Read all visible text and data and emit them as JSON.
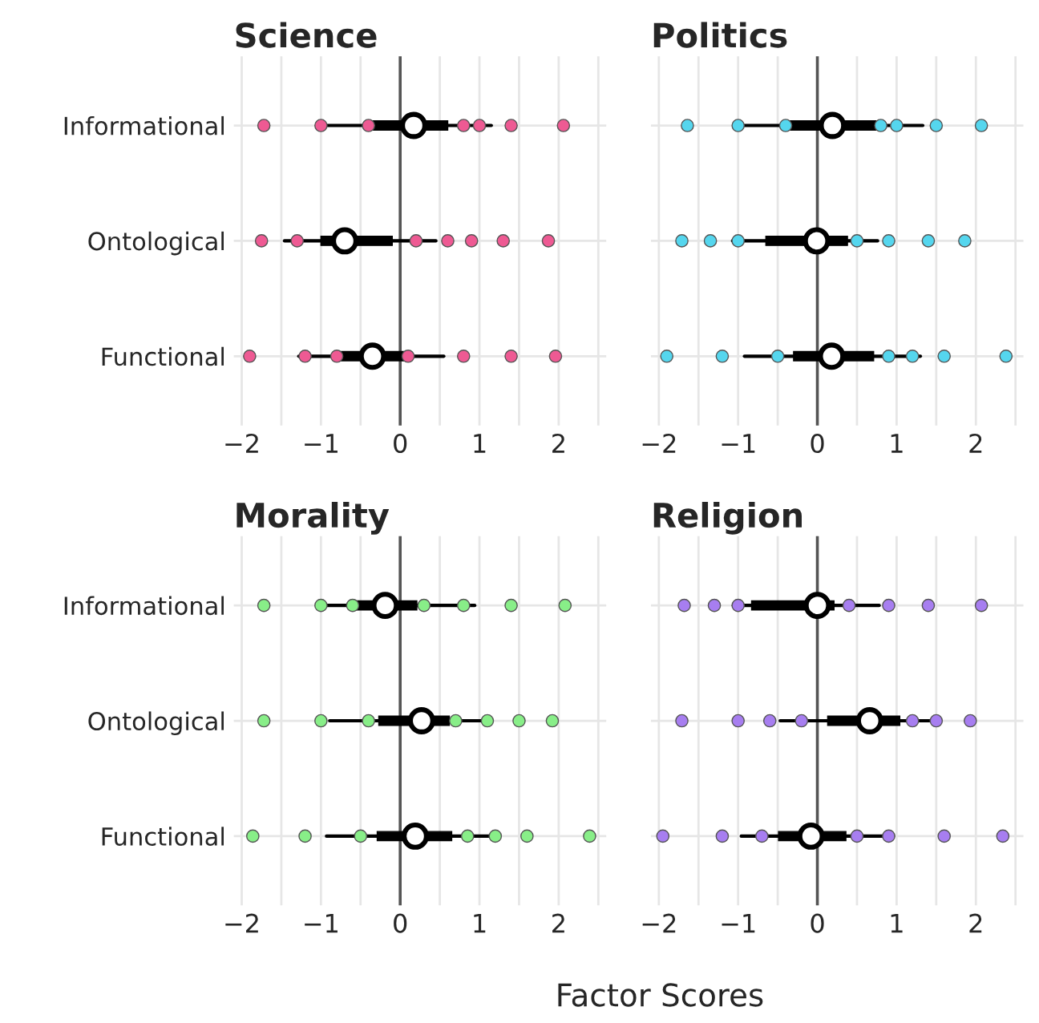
{
  "chart_data": [
    {
      "type": "box",
      "orientation": "horizontal",
      "title": "Science",
      "categories": [
        "Informational",
        "Ontological",
        "Functional"
      ],
      "boxes": [
        {
          "low": -1.0,
          "q1": -0.37,
          "median": 0.17,
          "q3": 0.6,
          "high": 1.15
        },
        {
          "low": -1.46,
          "q1": -1.0,
          "median": -0.7,
          "q3": -0.1,
          "high": 0.45
        },
        {
          "low": -1.28,
          "q1": -0.82,
          "median": -0.35,
          "q3": 0.1,
          "high": 0.55
        }
      ],
      "series": [
        {
          "type": "scatter",
          "color": "#ee5a93",
          "x": [
            "Informational",
            "Informational",
            "Informational",
            "Informational",
            "Informational",
            "Informational",
            "Informational",
            "Ontological",
            "Ontological",
            "Ontological",
            "Ontological",
            "Ontological",
            "Ontological",
            "Ontological",
            "Functional",
            "Functional",
            "Functional",
            "Functional",
            "Functional",
            "Functional",
            "Functional"
          ],
          "values": [
            -1.72,
            -1.0,
            -0.4,
            0.8,
            1.0,
            1.4,
            2.06,
            -1.75,
            -1.3,
            0.2,
            0.6,
            0.9,
            1.3,
            1.87,
            -1.9,
            -1.2,
            -0.8,
            0.1,
            0.8,
            1.4,
            1.96
          ]
        }
      ],
      "xlim": [
        -2.1,
        2.6
      ],
      "xticks": [
        -2,
        {
          "value": -1.5,
          "label": null
        },
        -1,
        {
          "value": -0.5,
          "label": null
        },
        0,
        {
          "value": 0.5,
          "label": null
        },
        1,
        {
          "value": 1.5,
          "label": null
        },
        2,
        {
          "value": 2.5,
          "label": null
        }
      ],
      "ref_lines": [
        {
          "axis": "x",
          "value": 0,
          "label": null,
          "color": "#555555"
        }
      ],
      "grid": true,
      "tick_labels": "xy"
    },
    {
      "type": "box",
      "orientation": "horizontal",
      "title": "Politics",
      "categories": [
        "Informational",
        "Ontological",
        "Functional"
      ],
      "boxes": [
        {
          "low": -0.96,
          "q1": -0.37,
          "median": 0.19,
          "q3": 0.74,
          "high": 1.33
        },
        {
          "low": -1.07,
          "q1": -0.65,
          "median": -0.01,
          "q3": 0.38,
          "high": 0.76
        },
        {
          "low": -0.92,
          "q1": -0.3,
          "median": 0.18,
          "q3": 0.71,
          "high": 1.3
        }
      ],
      "series": [
        {
          "type": "scatter",
          "color": "#55d6ee",
          "x": [
            "Informational",
            "Informational",
            "Informational",
            "Informational",
            "Informational",
            "Informational",
            "Informational",
            "Ontological",
            "Ontological",
            "Ontological",
            "Ontological",
            "Ontological",
            "Ontological",
            "Ontological",
            "Functional",
            "Functional",
            "Functional",
            "Functional",
            "Functional",
            "Functional",
            "Functional"
          ],
          "values": [
            -1.64,
            -1.0,
            -0.4,
            0.8,
            1.0,
            1.5,
            2.07,
            -1.71,
            -1.35,
            -1.0,
            0.5,
            0.9,
            1.4,
            1.86,
            -1.9,
            -1.2,
            -0.5,
            0.9,
            1.2,
            1.6,
            2.38
          ]
        }
      ],
      "xlim": [
        -2.1,
        2.6
      ],
      "xticks": [
        -2,
        {
          "value": -1.5,
          "label": null
        },
        -1,
        {
          "value": -0.5,
          "label": null
        },
        0,
        {
          "value": 0.5,
          "label": null
        },
        1,
        {
          "value": 1.5,
          "label": null
        },
        2,
        {
          "value": 2.5,
          "label": null
        }
      ],
      "ref_lines": [
        {
          "axis": "x",
          "value": 0,
          "label": null,
          "color": "#555555"
        }
      ],
      "grid": true,
      "tick_labels": "x"
    },
    {
      "type": "box",
      "orientation": "horizontal",
      "title": "Morality",
      "categories": [
        "Informational",
        "Ontological",
        "Functional"
      ],
      "boxes": [
        {
          "low": -1.0,
          "q1": -0.63,
          "median": -0.19,
          "q3": 0.21,
          "high": 0.94
        },
        {
          "low": -0.89,
          "q1": -0.27,
          "median": 0.27,
          "q3": 0.62,
          "high": 1.11
        },
        {
          "low": -0.93,
          "q1": -0.29,
          "median": 0.19,
          "q3": 0.65,
          "high": 1.22
        }
      ],
      "series": [
        {
          "type": "scatter",
          "color": "#88ee88",
          "x": [
            "Informational",
            "Informational",
            "Informational",
            "Informational",
            "Informational",
            "Informational",
            "Informational",
            "Ontological",
            "Ontological",
            "Ontological",
            "Ontological",
            "Ontological",
            "Ontological",
            "Ontological",
            "Functional",
            "Functional",
            "Functional",
            "Functional",
            "Functional",
            "Functional",
            "Functional"
          ],
          "values": [
            -1.72,
            -1.0,
            -0.6,
            0.3,
            0.8,
            1.4,
            2.08,
            -1.72,
            -1.0,
            -0.4,
            0.7,
            1.1,
            1.5,
            1.92,
            -1.86,
            -1.2,
            -0.5,
            0.85,
            1.2,
            1.6,
            2.39
          ]
        }
      ],
      "xlim": [
        -2.1,
        2.6
      ],
      "xticks": [
        -2,
        {
          "value": -1.5,
          "label": null
        },
        -1,
        {
          "value": -0.5,
          "label": null
        },
        0,
        {
          "value": 0.5,
          "label": null
        },
        1,
        {
          "value": 1.5,
          "label": null
        },
        2,
        {
          "value": 2.5,
          "label": null
        }
      ],
      "ref_lines": [
        {
          "axis": "x",
          "value": 0,
          "label": null,
          "color": "#555555"
        }
      ],
      "grid": true,
      "tick_labels": "xy"
    },
    {
      "type": "box",
      "orientation": "horizontal",
      "title": "Religion",
      "xlabel": "Factor Scores",
      "categories": [
        "Informational",
        "Ontological",
        "Functional"
      ],
      "boxes": [
        {
          "low": -1.06,
          "q1": -0.83,
          "median": 0.0,
          "q3": 0.21,
          "high": 0.78
        },
        {
          "low": -0.47,
          "q1": 0.13,
          "median": 0.66,
          "q3": 1.04,
          "high": 1.47
        },
        {
          "low": -0.96,
          "q1": -0.49,
          "median": -0.08,
          "q3": 0.36,
          "high": 0.96
        }
      ],
      "series": [
        {
          "type": "scatter",
          "color": "#a77ef0",
          "x": [
            "Informational",
            "Informational",
            "Informational",
            "Informational",
            "Informational",
            "Informational",
            "Informational",
            "Ontological",
            "Ontological",
            "Ontological",
            "Ontological",
            "Ontological",
            "Ontological",
            "Ontological",
            "Functional",
            "Functional",
            "Functional",
            "Functional",
            "Functional",
            "Functional",
            "Functional"
          ],
          "values": [
            -1.68,
            -1.3,
            -1.0,
            0.4,
            0.9,
            1.4,
            2.07,
            -1.71,
            -1.0,
            -0.6,
            -0.2,
            1.2,
            1.5,
            1.93,
            -1.95,
            -1.2,
            -0.7,
            0.5,
            0.9,
            1.6,
            2.34
          ]
        }
      ],
      "xlim": [
        -2.1,
        2.6
      ],
      "xticks": [
        -2,
        {
          "value": -1.5,
          "label": null
        },
        -1,
        {
          "value": -0.5,
          "label": null
        },
        0,
        {
          "value": 0.5,
          "label": null
        },
        1,
        {
          "value": 1.5,
          "label": null
        },
        2,
        {
          "value": 2.5,
          "label": null
        }
      ],
      "ref_lines": [
        {
          "axis": "x",
          "value": 0,
          "label": null,
          "color": "#555555"
        }
      ],
      "grid": true,
      "tick_labels": "x"
    }
  ]
}
